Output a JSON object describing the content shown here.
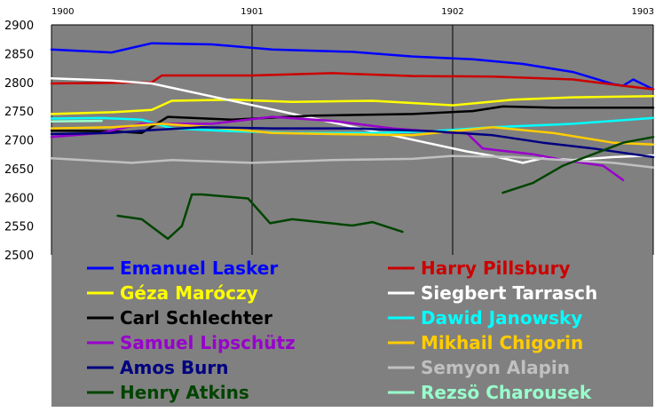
{
  "chart_data": {
    "type": "line",
    "title": "",
    "xlabel": "",
    "ylabel": "",
    "xlim": [
      1900,
      1903
    ],
    "ylim": [
      2500,
      2900
    ],
    "x_ticks": [
      "1900",
      "1901",
      "1902",
      "1903"
    ],
    "y_ticks": [
      "2900",
      "2850",
      "2800",
      "2750",
      "2700",
      "2650",
      "2600",
      "2550",
      "2500"
    ],
    "grid": "vertical at year ticks",
    "legend_position": "bottom",
    "background_color": "#808080",
    "series": [
      {
        "name": "Emanuel Lasker",
        "color": "#0000ff",
        "points": [
          [
            1900.0,
            2857
          ],
          [
            1900.3,
            2852
          ],
          [
            1900.4,
            2860
          ],
          [
            1900.5,
            2868
          ],
          [
            1900.8,
            2866
          ],
          [
            1901.1,
            2857
          ],
          [
            1901.5,
            2853
          ],
          [
            1901.8,
            2845
          ],
          [
            1902.1,
            2840
          ],
          [
            1902.35,
            2832
          ],
          [
            1902.6,
            2818
          ],
          [
            1902.8,
            2797
          ],
          [
            1902.85,
            2794
          ],
          [
            1902.9,
            2805
          ],
          [
            1903.0,
            2788
          ]
        ]
      },
      {
        "name": "Harry Pillsbury",
        "color": "#cc0000",
        "points": [
          [
            1900.0,
            2798
          ],
          [
            1900.5,
            2800
          ],
          [
            1900.55,
            2812
          ],
          [
            1901.0,
            2812
          ],
          [
            1901.4,
            2816
          ],
          [
            1901.8,
            2811
          ],
          [
            1902.2,
            2810
          ],
          [
            1902.6,
            2805
          ],
          [
            1902.85,
            2794
          ],
          [
            1903.0,
            2788
          ]
        ]
      },
      {
        "name": "Géza Maróczy",
        "color": "#ffff00",
        "points": [
          [
            1900.0,
            2745
          ],
          [
            1900.3,
            2748
          ],
          [
            1900.5,
            2752
          ],
          [
            1900.6,
            2768
          ],
          [
            1900.9,
            2770
          ],
          [
            1901.2,
            2766
          ],
          [
            1901.6,
            2768
          ],
          [
            1902.0,
            2760
          ],
          [
            1902.3,
            2770
          ],
          [
            1902.6,
            2774
          ],
          [
            1903.0,
            2776
          ]
        ]
      },
      {
        "name": "Siegbert Tarrasch",
        "color": "#ffffff",
        "points": [
          [
            1900.0,
            2807
          ],
          [
            1900.3,
            2803
          ],
          [
            1900.5,
            2798
          ],
          [
            1902.07,
            2680
          ],
          [
            1902.2,
            2672
          ],
          [
            1902.35,
            2660
          ],
          [
            1902.45,
            2668
          ],
          [
            1902.6,
            2665
          ],
          [
            1902.8,
            2670
          ],
          [
            1903.0,
            2673
          ]
        ]
      },
      {
        "name": "Carl Schlechter",
        "color": "#000000",
        "points": [
          [
            1900.0,
            2716
          ],
          [
            1900.3,
            2715
          ],
          [
            1900.45,
            2712
          ],
          [
            1900.58,
            2740
          ],
          [
            1900.9,
            2735
          ],
          [
            1901.3,
            2742
          ],
          [
            1901.8,
            2745
          ],
          [
            1902.1,
            2750
          ],
          [
            1902.25,
            2758
          ],
          [
            1902.5,
            2756
          ],
          [
            1903.0,
            2756
          ]
        ]
      },
      {
        "name": "Dawid Janowsky",
        "color": "#00ffff",
        "points": [
          [
            1900.0,
            2737
          ],
          [
            1900.25,
            2738
          ],
          [
            1900.45,
            2735
          ],
          [
            1900.6,
            2720
          ],
          [
            1900.9,
            2715
          ],
          [
            1901.2,
            2712
          ],
          [
            1901.6,
            2712
          ],
          [
            1901.9,
            2715
          ],
          [
            1902.2,
            2722
          ],
          [
            1902.6,
            2728
          ],
          [
            1903.0,
            2738
          ]
        ]
      },
      {
        "name": "Samuel Lipschütz",
        "color": "#9900cc",
        "points": [
          [
            1900.0,
            2705
          ],
          [
            1900.25,
            2712
          ],
          [
            1900.45,
            2728
          ],
          [
            1900.8,
            2728
          ],
          [
            1901.1,
            2740
          ],
          [
            1901.4,
            2733
          ],
          [
            1901.7,
            2720
          ],
          [
            1902.0,
            2712
          ],
          [
            1902.07,
            2712
          ],
          [
            1902.15,
            2685
          ],
          [
            1902.4,
            2675
          ],
          [
            1902.55,
            2665
          ],
          [
            1902.75,
            2655
          ],
          [
            1902.85,
            2630
          ]
        ]
      },
      {
        "name": "Mikhail Chigorin",
        "color": "#ffcc00",
        "points": [
          [
            1900.0,
            2720
          ],
          [
            1900.3,
            2722
          ],
          [
            1900.55,
            2728
          ],
          [
            1900.8,
            2722
          ],
          [
            1901.1,
            2712
          ],
          [
            1901.4,
            2710
          ],
          [
            1901.8,
            2708
          ],
          [
            1902.2,
            2722
          ],
          [
            1902.5,
            2712
          ],
          [
            1902.8,
            2695
          ],
          [
            1903.0,
            2692
          ]
        ]
      },
      {
        "name": "Amos Burn",
        "color": "#000080",
        "points": [
          [
            1900.0,
            2710
          ],
          [
            1900.3,
            2712
          ],
          [
            1900.5,
            2717
          ],
          [
            1900.75,
            2722
          ],
          [
            1901.1,
            2720
          ],
          [
            1901.5,
            2720
          ],
          [
            1901.9,
            2715
          ],
          [
            1902.2,
            2708
          ],
          [
            1902.45,
            2695
          ],
          [
            1902.7,
            2685
          ],
          [
            1902.9,
            2675
          ],
          [
            1903.0,
            2670
          ]
        ]
      },
      {
        "name": "Semyon Alapin",
        "color": "#c0c0c0",
        "points": [
          [
            1900.0,
            2668
          ],
          [
            1900.4,
            2660
          ],
          [
            1900.6,
            2665
          ],
          [
            1901.0,
            2660
          ],
          [
            1901.4,
            2665
          ],
          [
            1901.8,
            2667
          ],
          [
            1902.0,
            2672
          ],
          [
            1902.3,
            2670
          ],
          [
            1902.6,
            2664
          ],
          [
            1902.8,
            2660
          ],
          [
            1903.0,
            2652
          ]
        ]
      },
      {
        "name": "Henry Atkins",
        "color": "#004400",
        "points": [
          [
            1900.33,
            2568
          ],
          [
            1900.45,
            2562
          ],
          [
            1900.58,
            2528
          ],
          [
            1900.65,
            2550
          ],
          [
            1900.7,
            2605
          ],
          [
            1900.75,
            2605
          ],
          [
            1900.98,
            2598
          ],
          [
            1901.09,
            2555
          ],
          [
            1901.2,
            2562
          ],
          [
            1901.5,
            2551
          ],
          [
            1901.6,
            2557
          ],
          [
            1901.75,
            2540
          ]
        ],
        "points2": [
          [
            1902.25,
            2608
          ],
          [
            1902.4,
            2625
          ],
          [
            1902.55,
            2655
          ],
          [
            1902.7,
            2675
          ],
          [
            1902.85,
            2695
          ],
          [
            1903.0,
            2705
          ]
        ]
      },
      {
        "name": "Rezsö Charousek",
        "color": "#99ffcc",
        "points": [
          [
            1900.0,
            2732
          ],
          [
            1900.25,
            2733
          ]
        ]
      }
    ]
  }
}
